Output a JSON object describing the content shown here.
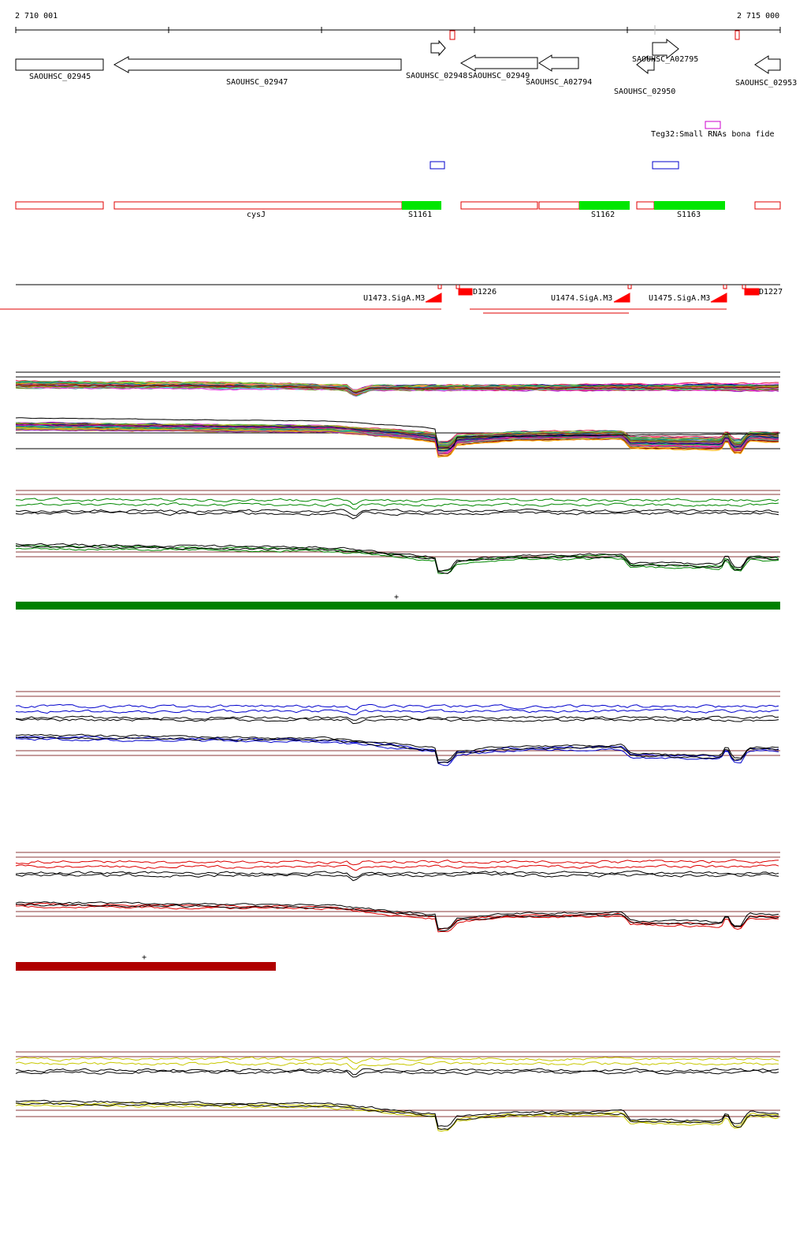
{
  "ruler": {
    "start_label": "2 710 001",
    "end_label": "2 715 000"
  },
  "genes": [
    {
      "label": "SAOUHSC_02945"
    },
    {
      "label": "SAOUHSC_02947"
    },
    {
      "label": "SAOUHSC_02948"
    },
    {
      "label": "SAOUHSC_02949"
    },
    {
      "label": "SAOUHSC_A02794"
    },
    {
      "label": "SAOUHSC_A02795"
    },
    {
      "label": "SAOUHSC_02950"
    },
    {
      "label": "SAOUHSC_02953"
    }
  ],
  "srna": {
    "label": "Teg32:Small RNAs bona fide"
  },
  "annotations": [
    {
      "label": "cysJ"
    },
    {
      "label": "S1161"
    },
    {
      "label": "S1162"
    },
    {
      "label": "S1163"
    }
  ],
  "promoters": [
    {
      "label": "U1473.SigA.M3"
    },
    {
      "label": "U1474.SigA.M3"
    },
    {
      "label": "U1475.SigA.M3"
    }
  ],
  "terminators": [
    {
      "label": "D1226"
    },
    {
      "label": "D1227"
    }
  ],
  "strand_markers": {
    "green": "+",
    "red": "+"
  },
  "colors": {
    "gene_outline": "#000000",
    "annotation_outline": "#e00000",
    "annotation_fill": "#00e600",
    "srna_box": "#cc00cc",
    "tiling_box": "#0000cc",
    "promoter": "#ff0000",
    "green_track": "#008000",
    "red_track": "#b00000",
    "blue_trace": "#0000cc",
    "red_trace": "#dd0000",
    "yellow_trace": "#c8c800",
    "green_trace": "#008800",
    "threshold_line": "#8b3a3a"
  }
}
